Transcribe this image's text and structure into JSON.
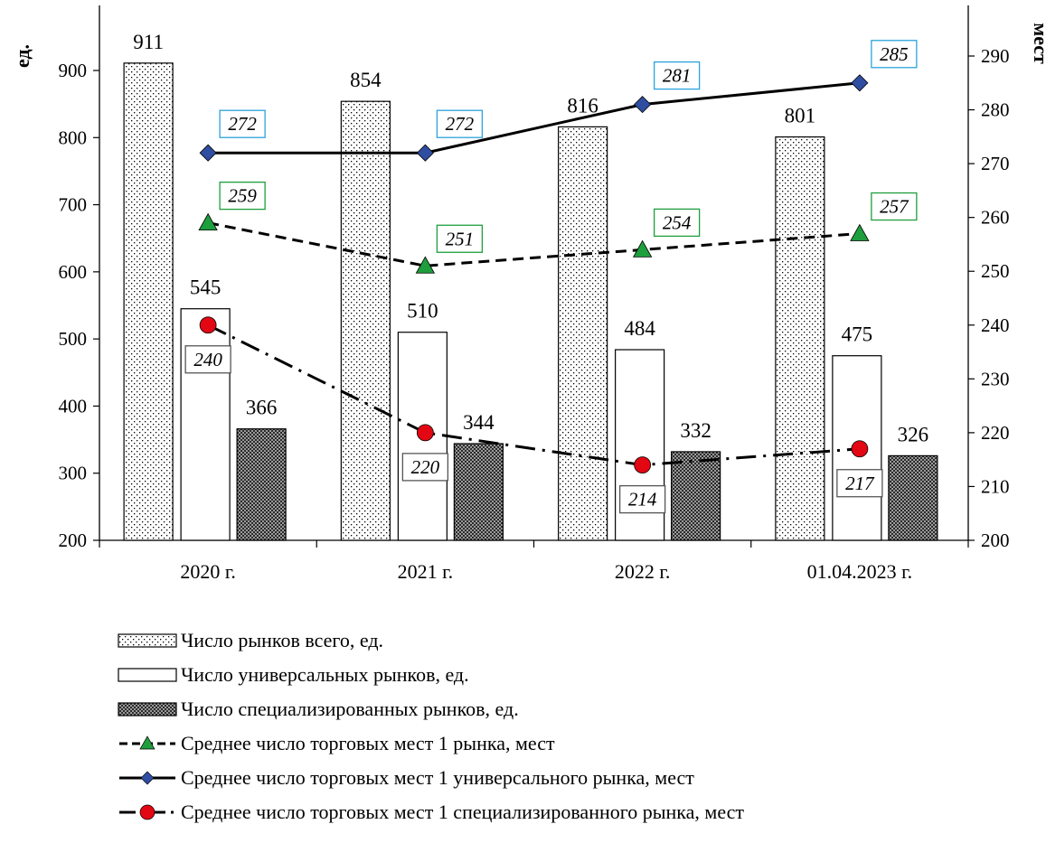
{
  "chart_data": {
    "type": "bar",
    "categories": [
      "2020 г.",
      "2021 г.",
      "2022 г.",
      "01.04.2023 г."
    ],
    "y_left": {
      "label": "ед.",
      "range": [
        200,
        900
      ],
      "ticks": [
        200,
        300,
        400,
        500,
        600,
        700,
        800,
        900
      ]
    },
    "y_right": {
      "label": "мест",
      "range": [
        200,
        290
      ],
      "ticks": [
        200,
        210,
        220,
        230,
        240,
        250,
        260,
        270,
        280,
        290
      ]
    },
    "grid": false,
    "legend_position": "bottom",
    "series": [
      {
        "name": "Число рынков всего, ед.",
        "kind": "bar",
        "axis": "left",
        "pattern": "dots",
        "values": [
          911,
          854,
          816,
          801
        ],
        "labels": [
          "911",
          "854",
          "816",
          "801"
        ]
      },
      {
        "name": "Число универсальных рынков, ед.",
        "kind": "bar",
        "axis": "left",
        "pattern": "white",
        "values": [
          545,
          510,
          484,
          475
        ],
        "labels": [
          "545",
          "510",
          "484",
          "475"
        ]
      },
      {
        "name": "Число специализированных рынков, ед.",
        "kind": "bar",
        "axis": "left",
        "pattern": "checker",
        "values": [
          366,
          344,
          332,
          326
        ],
        "labels": [
          "366",
          "344",
          "332",
          "326"
        ]
      },
      {
        "name": "Среднее число торговых мест 1 рынка, мест",
        "kind": "line",
        "axis": "right",
        "dash": "dashed",
        "marker": "triangle",
        "marker_color": "#1e9e3c",
        "label_border": "#1e9e3c",
        "values": [
          259,
          251,
          254,
          257
        ],
        "labels": [
          "259",
          "251",
          "254",
          "257"
        ]
      },
      {
        "name": "Среднее число торговых мест 1 универсального рынка, мест",
        "kind": "line",
        "axis": "right",
        "dash": "solid",
        "marker": "diamond",
        "marker_color": "#2f4ea2",
        "label_border": "#2ba3dc",
        "values": [
          272,
          272,
          281,
          285
        ],
        "labels": [
          "272",
          "272",
          "281",
          "285"
        ]
      },
      {
        "name": "Среднее число торговых мест 1 специализированного рынка, мест",
        "kind": "line",
        "axis": "right",
        "dash": "dashdot",
        "marker": "circle",
        "marker_color": "#e30613",
        "label_border": "#555555",
        "values": [
          240,
          220,
          214,
          217
        ],
        "labels": [
          "240",
          "220",
          "214",
          "217"
        ]
      }
    ]
  }
}
